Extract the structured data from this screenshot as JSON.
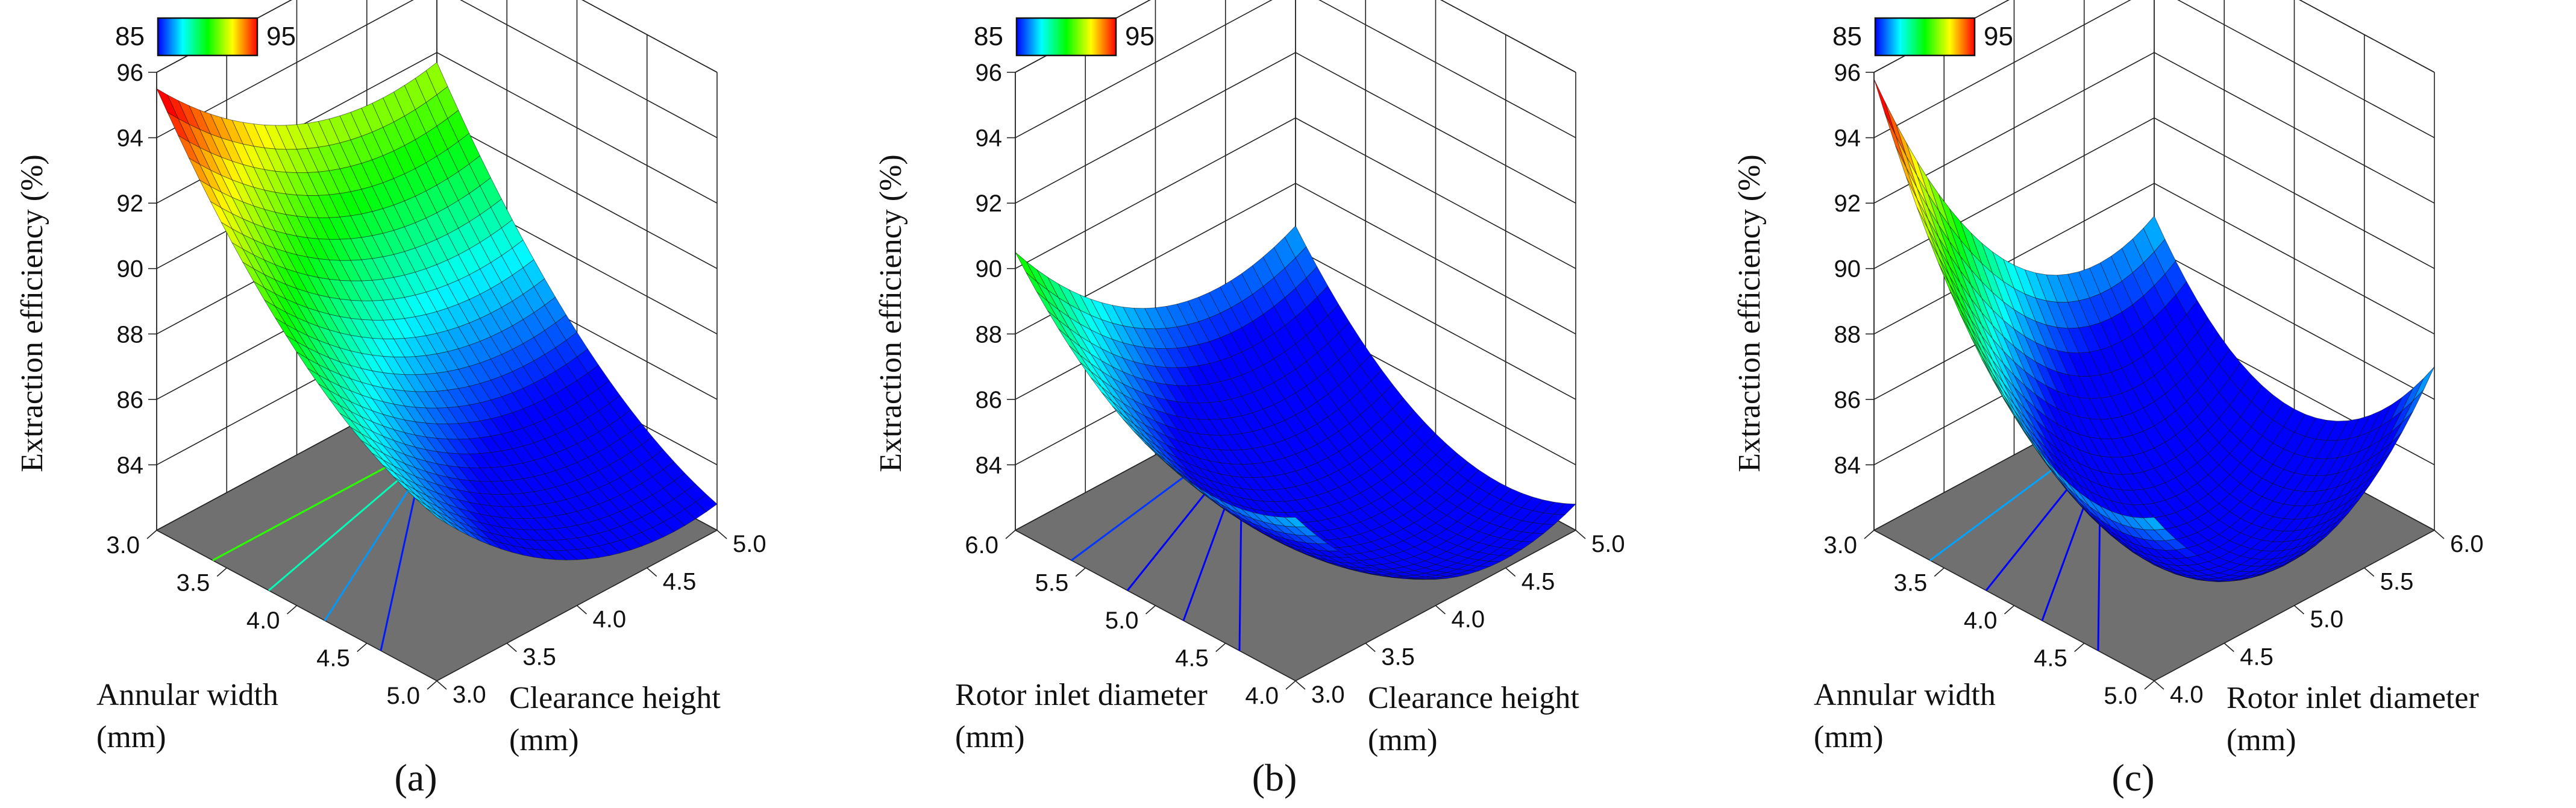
{
  "figure": {
    "color_scale": {
      "min_label": "85",
      "max_label": "95",
      "min": 85,
      "max": 95,
      "stops": [
        "#0000ff",
        "#00ffff",
        "#00ff00",
        "#ffff00",
        "#ff0000"
      ]
    }
  },
  "chart_data": [
    {
      "type": "surface3d",
      "panel_label": "(a)",
      "zlabel": "Extraction efficiency (%)",
      "z_ticks": [
        "84",
        "86",
        "88",
        "90",
        "92",
        "94",
        "96"
      ],
      "zlim": [
        82,
        96
      ],
      "left_axis": {
        "label_line1": "Annular width",
        "label_line2": "(mm)",
        "ticks": [
          "3.0",
          "3.5",
          "4.0",
          "4.5",
          "5.0"
        ],
        "range": [
          3.0,
          5.0
        ]
      },
      "right_axis": {
        "label_line1": "Clearance height",
        "label_line2": "(mm)",
        "ticks": [
          "3.0",
          "3.5",
          "4.0",
          "4.5",
          "5.0"
        ],
        "range": [
          3.0,
          5.0
        ]
      },
      "corner_values": {
        "left_min_right_min": 95.5,
        "left_min_right_max": 91.7,
        "left_max_right_min": 87.0,
        "left_max_right_max": 82.8
      },
      "curvature": 1.0
    },
    {
      "type": "surface3d",
      "panel_label": "(b)",
      "zlabel": "Extraction efficiency (%)",
      "z_ticks": [
        "84",
        "86",
        "88",
        "90",
        "92",
        "94",
        "96"
      ],
      "zlim": [
        82,
        96
      ],
      "left_axis": {
        "label_line1": "Rotor inlet diameter",
        "label_line2": "(mm)",
        "ticks": [
          "6.0",
          "5.5",
          "5.0",
          "4.5",
          "4.0"
        ],
        "range": [
          6.0,
          4.0
        ]
      },
      "right_axis": {
        "label_line1": "Clearance height",
        "label_line2": "(mm)",
        "ticks": [
          "3.0",
          "3.5",
          "4.0",
          "4.5",
          "5.0"
        ],
        "range": [
          3.0,
          5.0
        ]
      },
      "corner_values": {
        "left_min_right_min": 90.5,
        "left_min_right_max": 86.7,
        "left_max_right_min": 87.0,
        "left_max_right_max": 82.8
      },
      "curvature": 1.4
    },
    {
      "type": "surface3d",
      "panel_label": "(c)",
      "zlabel": "Extraction efficiency (%)",
      "z_ticks": [
        "84",
        "86",
        "88",
        "90",
        "92",
        "94",
        "96"
      ],
      "zlim": [
        82,
        96
      ],
      "left_axis": {
        "label_line1": "Annular width",
        "label_line2": "(mm)",
        "ticks": [
          "3.0",
          "3.5",
          "4.0",
          "4.5",
          "5.0"
        ],
        "range": [
          3.0,
          5.0
        ]
      },
      "right_axis": {
        "label_line1": "Rotor inlet diameter",
        "label_line2": "(mm)",
        "ticks": [
          "4.0",
          "4.5",
          "5.0",
          "5.5",
          "6.0"
        ],
        "range": [
          4.0,
          6.0
        ]
      },
      "corner_values": {
        "left_min_right_min": 95.8,
        "left_min_right_max": 87.0,
        "left_max_right_min": 87.0,
        "left_max_right_max": 87.0
      },
      "curvature": 2.4
    }
  ]
}
